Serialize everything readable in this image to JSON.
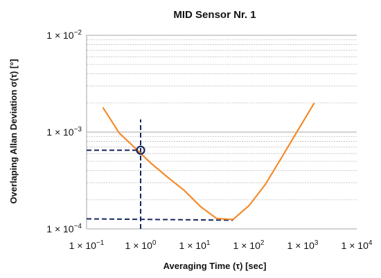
{
  "chart_data": {
    "type": "line",
    "title": "MID Sensor Nr. 1",
    "xlabel": "Averaging Time (τ) [sec]",
    "ylabel": "Overlaping Allan Deviation  σ(τ) [°]",
    "xscale": "log",
    "yscale": "log",
    "xlim": [
      0.1,
      10000
    ],
    "ylim": [
      0.0001,
      0.01
    ],
    "x_ticks": [
      {
        "base": "1 × 10",
        "exp": "−1"
      },
      {
        "base": "1 × 10",
        "exp": "0"
      },
      {
        "base": "1 × 10",
        "exp": "1"
      },
      {
        "base": "1 × 10",
        "exp": "2"
      },
      {
        "base": "1 × 10",
        "exp": "3"
      },
      {
        "base": "1 × 10",
        "exp": "4"
      }
    ],
    "y_ticks": [
      {
        "base": "1 × 10",
        "exp": "−4"
      },
      {
        "base": "1 × 10",
        "exp": "−3"
      },
      {
        "base": "1 × 10",
        "exp": "−2"
      }
    ],
    "grid": "horizontal",
    "series": [
      {
        "color": "#F58A2A",
        "x": [
          0.2,
          0.4,
          0.8,
          1.6,
          3.2,
          6.4,
          12.8,
          25.6,
          51.2,
          102.4,
          204.8,
          409.6,
          819.2,
          1638.4
        ],
        "y": [
          0.0018,
          0.00098,
          0.00068,
          0.00047,
          0.00034,
          0.00025,
          0.00017,
          0.000128,
          0.000125,
          0.000175,
          0.00029,
          0.00055,
          0.00105,
          0.002
        ]
      }
    ],
    "annotations": {
      "marker": {
        "x": 1.0,
        "y": 0.00065,
        "shape": "circle",
        "color": "#16265E"
      },
      "dashed_lines": [
        {
          "x": [
            0.1,
            1.0
          ],
          "y": [
            0.00065,
            0.00065
          ]
        },
        {
          "x": [
            1.0,
            1.0
          ],
          "y": [
            0.0001,
            0.00135
          ]
        },
        {
          "x": [
            0.1,
            51.2
          ],
          "y": [
            0.000127,
            0.000123
          ]
        }
      ],
      "dash_color": "#16265E"
    }
  }
}
